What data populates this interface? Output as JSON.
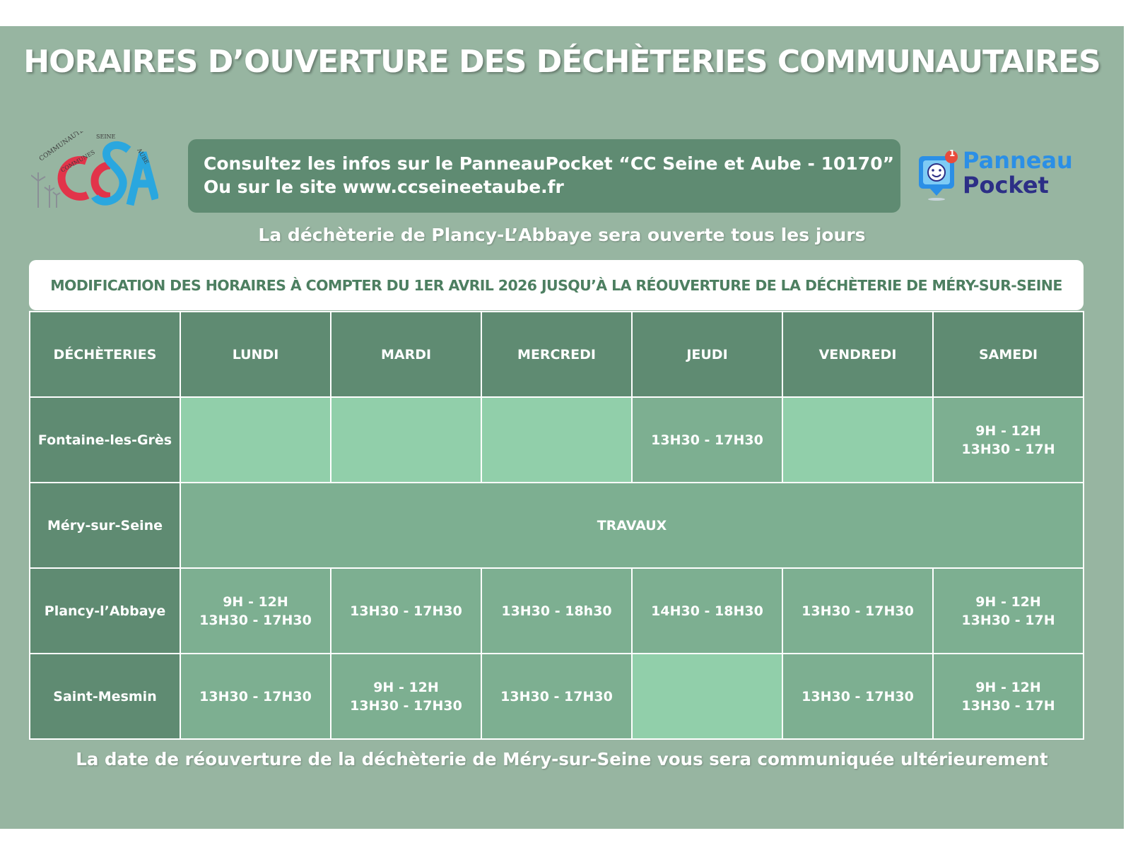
{
  "header": {
    "title": "HORAIRES D’OUVERTURE DES DÉCHÈTERIES COMMUNAUTAIRES"
  },
  "logo_cc": {
    "icon": "ccsa-logo-icon",
    "text_top": "COMMUNAUTÉ",
    "text_mid": "COMMUNES",
    "text_seine": "SEINE",
    "text_aube": "AUBE"
  },
  "info": {
    "line1": "Consultez les infos sur le PanneauPocket “CC Seine et Aube - 10170”",
    "line2": "Ou sur le site www.ccseineetaube.fr"
  },
  "panneaupocket": {
    "icon": "panneaupocket-icon",
    "badge": "1",
    "line1": "Panneau",
    "line2": "Pocket"
  },
  "subtitle": "La déchèterie de Plancy-L’Abbaye sera ouverte tous les jours",
  "notice": "MODIFICATION DES HORAIRES À COMPTER DU 1ER AVRIL 2026 JUSQU’À LA RÉOUVERTURE DE LA DÉCHÈTERIE DE MÉRY-SUR-SEINE",
  "table": {
    "headers": [
      "DÉCHÈTERIES",
      "LUNDI",
      "MARDI",
      "MERCREDI",
      "JEUDI",
      "VENDREDI",
      "SAMEDI"
    ],
    "rows": [
      {
        "site": "Fontaine-les-Grès",
        "cells": [
          {
            "lines": []
          },
          {
            "lines": []
          },
          {
            "lines": []
          },
          {
            "lines": [
              "13H30 - 17H30"
            ]
          },
          {
            "lines": []
          },
          {
            "lines": [
              "9H - 12H",
              "13H30 - 17H"
            ]
          }
        ]
      },
      {
        "site": "Méry-sur-Seine",
        "span_text": "TRAVAUX"
      },
      {
        "site": "Plancy-l’Abbaye",
        "cells": [
          {
            "lines": [
              "9H - 12H",
              "13H30 - 17H30"
            ]
          },
          {
            "lines": [
              "13H30 - 17H30"
            ]
          },
          {
            "lines": [
              "13H30 - 18h30"
            ]
          },
          {
            "lines": [
              "14H30 - 18H30"
            ]
          },
          {
            "lines": [
              "13H30 - 17H30"
            ]
          },
          {
            "lines": [
              "9H - 12H",
              "13H30 - 17H"
            ]
          }
        ]
      },
      {
        "site": "Saint-Mesmin",
        "cells": [
          {
            "lines": [
              "13H30 - 17H30"
            ]
          },
          {
            "lines": [
              "9H - 12H",
              "13H30 - 17H30"
            ]
          },
          {
            "lines": [
              "13H30 - 17H30"
            ]
          },
          {
            "lines": []
          },
          {
            "lines": [
              "13H30 - 17H30"
            ]
          },
          {
            "lines": [
              "9H - 12H",
              "13H30 - 17H"
            ]
          }
        ]
      }
    ]
  },
  "footer": "La date de réouverture de la déchèterie de Méry-sur-Seine vous sera communiquée ultérieurement",
  "colors": {
    "background": "#97b5a1",
    "dark_green": "#5f8b72",
    "open_cell": "#7daf91",
    "closed_cell": "#91cfaa",
    "notice_text": "#4d7f61",
    "logo_red": "#e2344a",
    "logo_blue": "#2aa7df"
  }
}
